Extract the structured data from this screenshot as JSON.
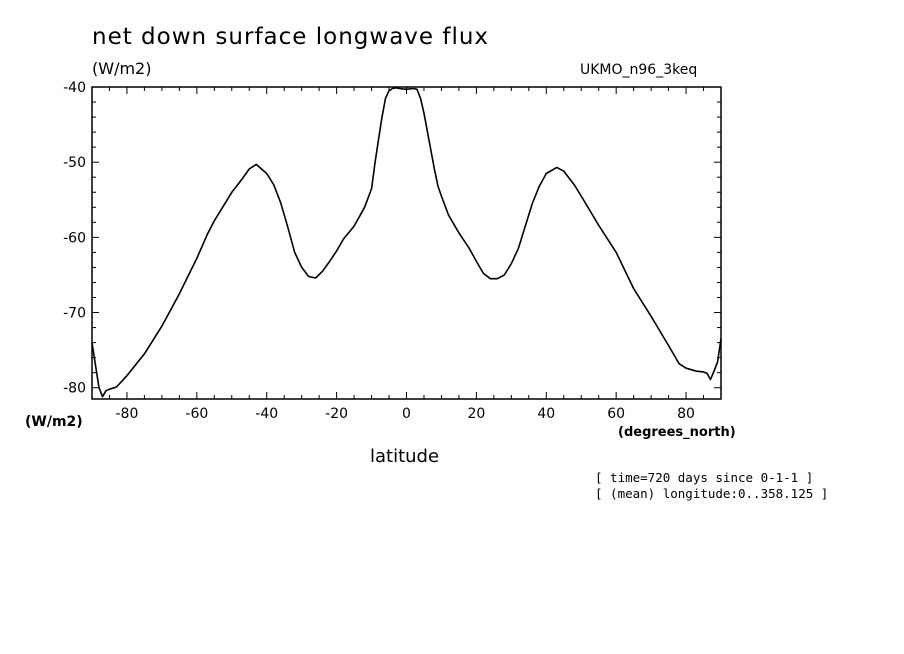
{
  "chart_data": {
    "type": "line",
    "title": "net down surface longwave flux",
    "units": "(W/m2)",
    "dataset": "UKMO_n96_3keq",
    "ylabel": "(W/m2)",
    "xlabel": "latitude",
    "xunits": "(degrees_north)",
    "notes": [
      "[ time=720 days since 0-1-1 ]",
      "[ (mean) longitude:0..358.125 ]"
    ],
    "xlim": [
      -90,
      90
    ],
    "ylim": [
      -81.5,
      -40
    ],
    "x_ticks": [
      -80,
      -60,
      -40,
      -20,
      0,
      20,
      40,
      60,
      80
    ],
    "x_tick_labels": [
      "-80",
      "-60",
      "-40",
      "-20",
      "0",
      "20",
      "40",
      "60",
      "80"
    ],
    "y_ticks": [
      -40,
      -50,
      -60,
      -70,
      -80
    ],
    "y_tick_labels": [
      "-40",
      "-50",
      "-60",
      "-70",
      "-80"
    ],
    "grid": false,
    "series": [
      {
        "x": [
          -90,
          -89,
          -88,
          -87,
          -86,
          -85,
          -83,
          -80,
          -75,
          -70,
          -65,
          -60,
          -57,
          -55,
          -50,
          -47,
          -45,
          -43,
          -40,
          -38,
          -36,
          -34,
          -32,
          -30,
          -28,
          -26,
          -24,
          -22,
          -20,
          -18,
          -15,
          -12,
          -10,
          -9,
          -8,
          -7,
          -6,
          -5,
          -4,
          -3,
          -2,
          0,
          2,
          3,
          4,
          5,
          6,
          7,
          8,
          9,
          10,
          12,
          15,
          18,
          20,
          22,
          24,
          26,
          28,
          30,
          32,
          34,
          36,
          38,
          40,
          43,
          45,
          48,
          50,
          55,
          60,
          65,
          70,
          75,
          78,
          80,
          83,
          85,
          86,
          87,
          88,
          89,
          90
        ],
        "y": [
          -74,
          -77,
          -80,
          -81.2,
          -80.4,
          -80.2,
          -79.9,
          -78.4,
          -75.5,
          -71.8,
          -67.5,
          -62.8,
          -59.6,
          -57.8,
          -54,
          -52.2,
          -50.9,
          -50.3,
          -51.5,
          -53,
          -55.4,
          -58.6,
          -62,
          -64,
          -65.2,
          -65.4,
          -64.5,
          -63.2,
          -61.8,
          -60.2,
          -58.5,
          -56,
          -53.5,
          -50,
          -47,
          -44,
          -41.5,
          -40.5,
          -40.2,
          -40.1,
          -40.2,
          -40.3,
          -40.2,
          -40.3,
          -41.5,
          -43.5,
          -46,
          -48.5,
          -51,
          -53.2,
          -54.5,
          -57,
          -59.4,
          -61.5,
          -63.2,
          -64.8,
          -65.5,
          -65.5,
          -65,
          -63.5,
          -61.5,
          -58.5,
          -55.5,
          -53.2,
          -51.5,
          -50.7,
          -51.2,
          -53,
          -54.5,
          -58.4,
          -62,
          -66.8,
          -70.5,
          -74.4,
          -76.8,
          -77.4,
          -77.8,
          -77.9,
          -78.1,
          -78.9,
          -77.8,
          -76.6,
          -73.5
        ]
      }
    ]
  }
}
